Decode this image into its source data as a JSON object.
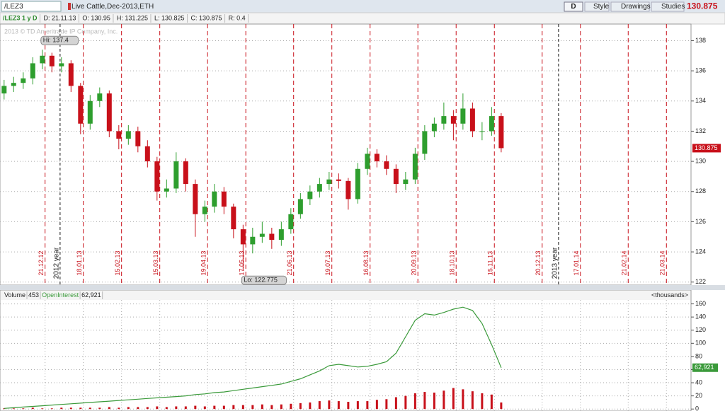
{
  "toolbar": {
    "symbol": "/LEZ3",
    "description": "Live Cattle,Dec-2013,ETH",
    "buttons": [
      "D",
      "Style",
      "Drawings",
      "Studies"
    ]
  },
  "info": [
    "/LEZ3 1 y D",
    "D: 21.11.13",
    "O: 130.95",
    "H: 131.225",
    "L: 130.825",
    "C: 130.875",
    "R: 0.4"
  ],
  "copyright": "2013 © TD Ameritrade IP Company, Inc.",
  "chart_data": [
    {
      "type": "candlestick",
      "x": [
        "21.11.12",
        "28.11.12",
        "05.12.12",
        "12.12.12",
        "19.12.12",
        "26.12.12",
        "02.01.13",
        "09.01.13",
        "16.01.13",
        "23.01.13",
        "30.01.13",
        "06.02.13",
        "13.02.13",
        "20.02.13",
        "27.02.13",
        "06.03.13",
        "13.03.13",
        "20.03.13",
        "27.03.13",
        "03.04.13",
        "10.04.13",
        "17.04.13",
        "24.04.13",
        "01.05.13",
        "08.05.13",
        "15.05.13",
        "22.05.13",
        "29.05.13",
        "05.06.13",
        "12.06.13",
        "19.06.13",
        "26.06.13",
        "03.07.13",
        "10.07.13",
        "17.07.13",
        "24.07.13",
        "31.07.13",
        "07.08.13",
        "14.08.13",
        "21.08.13",
        "28.08.13",
        "04.09.13",
        "11.09.13",
        "18.09.13",
        "25.09.13",
        "02.10.13",
        "09.10.13",
        "16.10.13",
        "23.10.13",
        "30.10.13",
        "06.11.13",
        "13.11.13",
        "20.11.13"
      ],
      "open": [
        134.5,
        135.0,
        135.2,
        135.5,
        136.5,
        137.0,
        136.3,
        136.5,
        135.0,
        132.5,
        134.0,
        134.5,
        132.0,
        131.5,
        132.0,
        131.0,
        130.0,
        128.0,
        128.2,
        130.0,
        128.5,
        126.5,
        127.0,
        128.0,
        127.0,
        125.5,
        124.5,
        125.0,
        125.2,
        124.8,
        125.5,
        126.5,
        127.5,
        128.0,
        128.5,
        128.8,
        128.7,
        127.5,
        129.5,
        130.5,
        130.0,
        129.5,
        128.5,
        128.8,
        130.5,
        132.0,
        132.5,
        133.0,
        132.5,
        133.5,
        132.0,
        132.0,
        133.0
      ],
      "high": [
        135.4,
        135.6,
        135.9,
        136.9,
        137.4,
        137.2,
        136.9,
        136.7,
        135.2,
        134.4,
        134.9,
        134.7,
        132.4,
        132.4,
        132.3,
        131.4,
        130.3,
        128.8,
        130.6,
        130.2,
        128.8,
        127.4,
        128.5,
        128.3,
        127.2,
        125.8,
        125.6,
        126.0,
        125.6,
        126.0,
        126.9,
        127.9,
        128.4,
        128.9,
        129.3,
        129.2,
        128.9,
        129.9,
        130.9,
        130.8,
        130.4,
        129.8,
        129.3,
        130.9,
        132.4,
        132.9,
        133.9,
        133.4,
        134.5,
        133.9,
        132.6,
        133.6,
        133.2
      ],
      "low": [
        134.1,
        134.6,
        134.8,
        135.1,
        136.1,
        135.9,
        135.9,
        134.6,
        131.8,
        132.1,
        133.6,
        131.6,
        130.8,
        131.1,
        130.6,
        129.6,
        127.4,
        127.6,
        127.9,
        128.0,
        125.0,
        126.0,
        126.6,
        126.5,
        124.9,
        122.775,
        123.9,
        124.6,
        124.2,
        124.4,
        125.2,
        126.2,
        127.1,
        127.6,
        128.1,
        128.2,
        126.8,
        127.2,
        129.1,
        129.6,
        129.1,
        127.9,
        128.1,
        128.5,
        130.1,
        131.6,
        132.1,
        131.4,
        132.1,
        131.6,
        131.4,
        131.7,
        130.6
      ],
      "close": [
        135.0,
        135.2,
        135.5,
        136.5,
        137.0,
        136.3,
        136.5,
        135.0,
        132.5,
        134.0,
        134.5,
        132.0,
        131.5,
        132.0,
        131.0,
        130.0,
        128.0,
        128.2,
        130.0,
        128.5,
        126.5,
        127.0,
        128.0,
        127.0,
        125.5,
        124.5,
        125.0,
        125.2,
        124.8,
        125.5,
        126.5,
        127.5,
        128.0,
        128.5,
        128.8,
        128.7,
        127.5,
        129.5,
        130.5,
        130.0,
        129.5,
        128.5,
        128.8,
        130.5,
        132.0,
        132.5,
        133.0,
        132.5,
        133.5,
        132.0,
        132.0,
        133.0,
        130.875
      ],
      "up_color": "#2e9e2e",
      "down_color": "#c8101a",
      "ylim": [
        121.8,
        139.1
      ],
      "yticks": [
        122,
        124,
        126,
        128,
        130,
        132,
        134,
        136,
        138
      ],
      "xlim": [
        "18.11.12",
        "08.04.14"
      ],
      "xticks": [
        "21.12.12",
        "18.01.13",
        "15.02.13",
        "15.03.13",
        "19.04.13",
        "17.05.13",
        "21.06.13",
        "19.07.13",
        "16.08.13",
        "20.09.13",
        "18.10.13",
        "15.11.13",
        "20.12.13",
        "17.01.14",
        "21.02.14",
        "21.03.14"
      ],
      "year_marks": [
        {
          "value": "01.01.13",
          "label": "2012 year"
        },
        {
          "value": "01.01.14",
          "label": "2013 year"
        }
      ],
      "annotations": [
        {
          "label": "Hi: 137.4",
          "value": 137.4,
          "x": "19.12.12"
        },
        {
          "label": "Lo: 122.775",
          "value": 122.775,
          "x": "15.05.13"
        }
      ]
    },
    {
      "type": "volume_oi",
      "unit": "<thousands>",
      "x": [
        "21.11.12",
        "28.11.12",
        "05.12.12",
        "12.12.12",
        "19.12.12",
        "26.12.12",
        "02.01.13",
        "09.01.13",
        "16.01.13",
        "23.01.13",
        "30.01.13",
        "06.02.13",
        "13.02.13",
        "20.02.13",
        "27.02.13",
        "06.03.13",
        "13.03.13",
        "20.03.13",
        "27.03.13",
        "03.04.13",
        "10.04.13",
        "17.04.13",
        "24.04.13",
        "01.05.13",
        "08.05.13",
        "15.05.13",
        "22.05.13",
        "29.05.13",
        "05.06.13",
        "12.06.13",
        "19.06.13",
        "26.06.13",
        "03.07.13",
        "10.07.13",
        "17.07.13",
        "24.07.13",
        "31.07.13",
        "07.08.13",
        "14.08.13",
        "21.08.13",
        "28.08.13",
        "04.09.13",
        "11.09.13",
        "18.09.13",
        "25.09.13",
        "02.10.13",
        "09.10.13",
        "16.10.13",
        "23.10.13",
        "30.10.13",
        "06.11.13",
        "13.11.13",
        "20.11.13"
      ],
      "series": [
        {
          "name": "Volume",
          "color": "#c8101a",
          "current": 453,
          "values": [
            1,
            1,
            1,
            2,
            1,
            1,
            2,
            2,
            2,
            2,
            2,
            3,
            2,
            3,
            3,
            3,
            4,
            3,
            4,
            4,
            5,
            4,
            5,
            5,
            6,
            6,
            6,
            7,
            6,
            7,
            8,
            9,
            10,
            12,
            13,
            12,
            11,
            12,
            12,
            14,
            15,
            18,
            20,
            24,
            26,
            25,
            28,
            32,
            30,
            27,
            24,
            22,
            10
          ]
        },
        {
          "name": "OpenInterest",
          "color": "#3a9a3a",
          "current": {
            "value": 62.921,
            "label": "62,921"
          },
          "values": [
            1,
            2,
            3,
            4,
            5,
            6,
            7,
            8,
            9,
            10,
            11,
            12,
            13,
            14,
            15,
            16,
            17,
            18,
            19,
            20,
            22,
            23,
            25,
            26,
            28,
            30,
            32,
            34,
            36,
            38,
            42,
            46,
            52,
            58,
            66,
            68,
            66,
            64,
            65,
            68,
            72,
            85,
            110,
            135,
            145,
            143,
            147,
            152,
            155,
            150,
            130,
            98,
            62.921
          ]
        }
      ],
      "ylim": [
        -3,
        166
      ],
      "yticks": [
        0,
        20,
        40,
        60,
        80,
        100,
        120,
        140,
        160
      ]
    }
  ]
}
